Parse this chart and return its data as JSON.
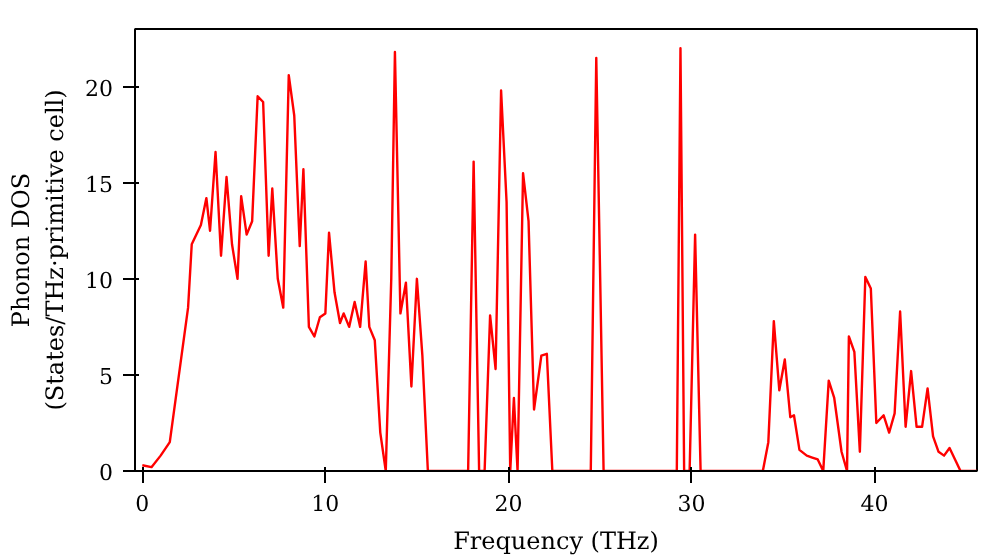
{
  "chart_data": {
    "type": "line",
    "xlabel": "Frequency (THz)",
    "ylabel": "Phonon DOS\n(States/THz·primitive cell)",
    "xlim": [
      -0.4,
      45.6
    ],
    "ylim": [
      0,
      23
    ],
    "xticks": [
      0,
      10,
      20,
      30,
      40
    ],
    "yticks": [
      0,
      5,
      10,
      15,
      20
    ],
    "grid": false,
    "series": [
      {
        "color": "#ff0000",
        "x": [
          0,
          0.5,
          1,
          1.5,
          2,
          2.5,
          2.7,
          3.2,
          3.5,
          3.7,
          4,
          4.3,
          4.6,
          4.9,
          5.2,
          5.4,
          5.7,
          6,
          6.3,
          6.6,
          6.9,
          7.1,
          7.4,
          7.7,
          8,
          8.3,
          8.6,
          8.8,
          9.1,
          9.4,
          9.7,
          10,
          10.2,
          10.5,
          10.8,
          11,
          11.3,
          11.6,
          11.9,
          12.2,
          12.4,
          12.7,
          13,
          13.3,
          13.6,
          13.8,
          14.1,
          14.4,
          14.7,
          15,
          15.3,
          15.6,
          16,
          17.8,
          18.1,
          18.4,
          18.7,
          19,
          19.3,
          19.6,
          19.9,
          20.1,
          20.3,
          20.5,
          20.8,
          21.1,
          21.4,
          21.8,
          22.1,
          22.4,
          24.5,
          24.8,
          25.2,
          29.2,
          29.4,
          29.6,
          29.9,
          30.2,
          30.5,
          33.9,
          34.2,
          34.5,
          34.8,
          35.1,
          35.4,
          35.6,
          35.9,
          36.3,
          36.6,
          36.9,
          37.2,
          37.5,
          37.8,
          38.2,
          38.5,
          38.6,
          38.9,
          39.2,
          39.5,
          39.8,
          40.1,
          40.5,
          40.8,
          41.1,
          41.4,
          41.7,
          42,
          42.3,
          42.6,
          42.9,
          43.2,
          43.5,
          43.8,
          44.1,
          44.4,
          44.7,
          45.6
        ],
        "values": [
          0.3,
          0.2,
          0.8,
          1.5,
          5,
          8.5,
          11.8,
          12.8,
          14.2,
          12.5,
          16.6,
          11.2,
          15.3,
          11.8,
          10,
          14.3,
          12.3,
          13,
          19.5,
          19.2,
          11.2,
          14.7,
          10,
          8.5,
          20.6,
          18.5,
          11.7,
          15.7,
          7.5,
          7,
          8,
          8.2,
          12.4,
          9.3,
          7.7,
          8.2,
          7.5,
          8.8,
          7.5,
          10.9,
          7.5,
          6.8,
          2,
          0,
          10,
          21.8,
          8.2,
          9.8,
          4.4,
          10,
          6,
          0,
          0,
          0,
          16.1,
          0,
          0,
          8.1,
          5.3,
          19.8,
          14,
          0,
          3.8,
          0,
          15.5,
          13,
          3.2,
          6,
          6.1,
          0,
          0,
          21.5,
          0,
          0,
          22,
          0,
          0,
          12.3,
          0,
          0,
          1.5,
          7.8,
          4.2,
          5.8,
          2.8,
          2.9,
          1.1,
          0.8,
          0.7,
          0.6,
          0,
          4.7,
          3.8,
          1,
          0,
          7,
          6.2,
          1,
          10.1,
          9.5,
          2.5,
          2.9,
          2,
          3,
          8.3,
          2.3,
          5.2,
          2.3,
          2.3,
          4.3,
          1.8,
          1,
          0.8,
          1.2,
          0.6,
          0,
          0
        ]
      }
    ]
  }
}
